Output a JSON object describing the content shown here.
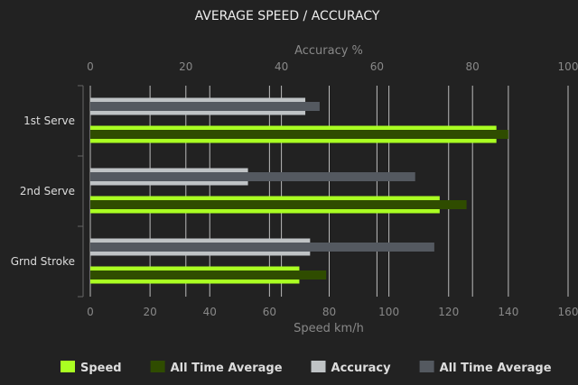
{
  "chart_data": {
    "type": "bar",
    "orientation": "horizontal",
    "title": "AVERAGE SPEED / ACCURACY",
    "categories": [
      "1st Serve",
      "2nd Serve",
      "Grnd Stroke"
    ],
    "x_top_axis": {
      "label": "Accuracy %",
      "range": [
        0,
        100
      ],
      "ticks": [
        0,
        20,
        40,
        60,
        80,
        100
      ]
    },
    "x_bottom_axis": {
      "label": "Speed km/h",
      "range": [
        0,
        160
      ],
      "ticks": [
        0,
        20,
        40,
        60,
        80,
        100,
        120,
        140,
        160
      ]
    },
    "grid": true,
    "legend_position": "bottom",
    "series": [
      {
        "name": "Speed",
        "axis": "bottom",
        "color": "#aaff22",
        "values": [
          136,
          117,
          70
        ]
      },
      {
        "name": "All Time Average",
        "axis": "bottom",
        "color": "#2f4c00",
        "values": [
          140,
          126,
          79
        ]
      },
      {
        "name": "Accuracy",
        "axis": "top",
        "color": "#bfc3c5",
        "values": [
          45,
          33,
          46
        ]
      },
      {
        "name": "All Time Average",
        "axis": "top",
        "color": "#545960",
        "values": [
          48,
          68,
          72
        ]
      }
    ]
  }
}
